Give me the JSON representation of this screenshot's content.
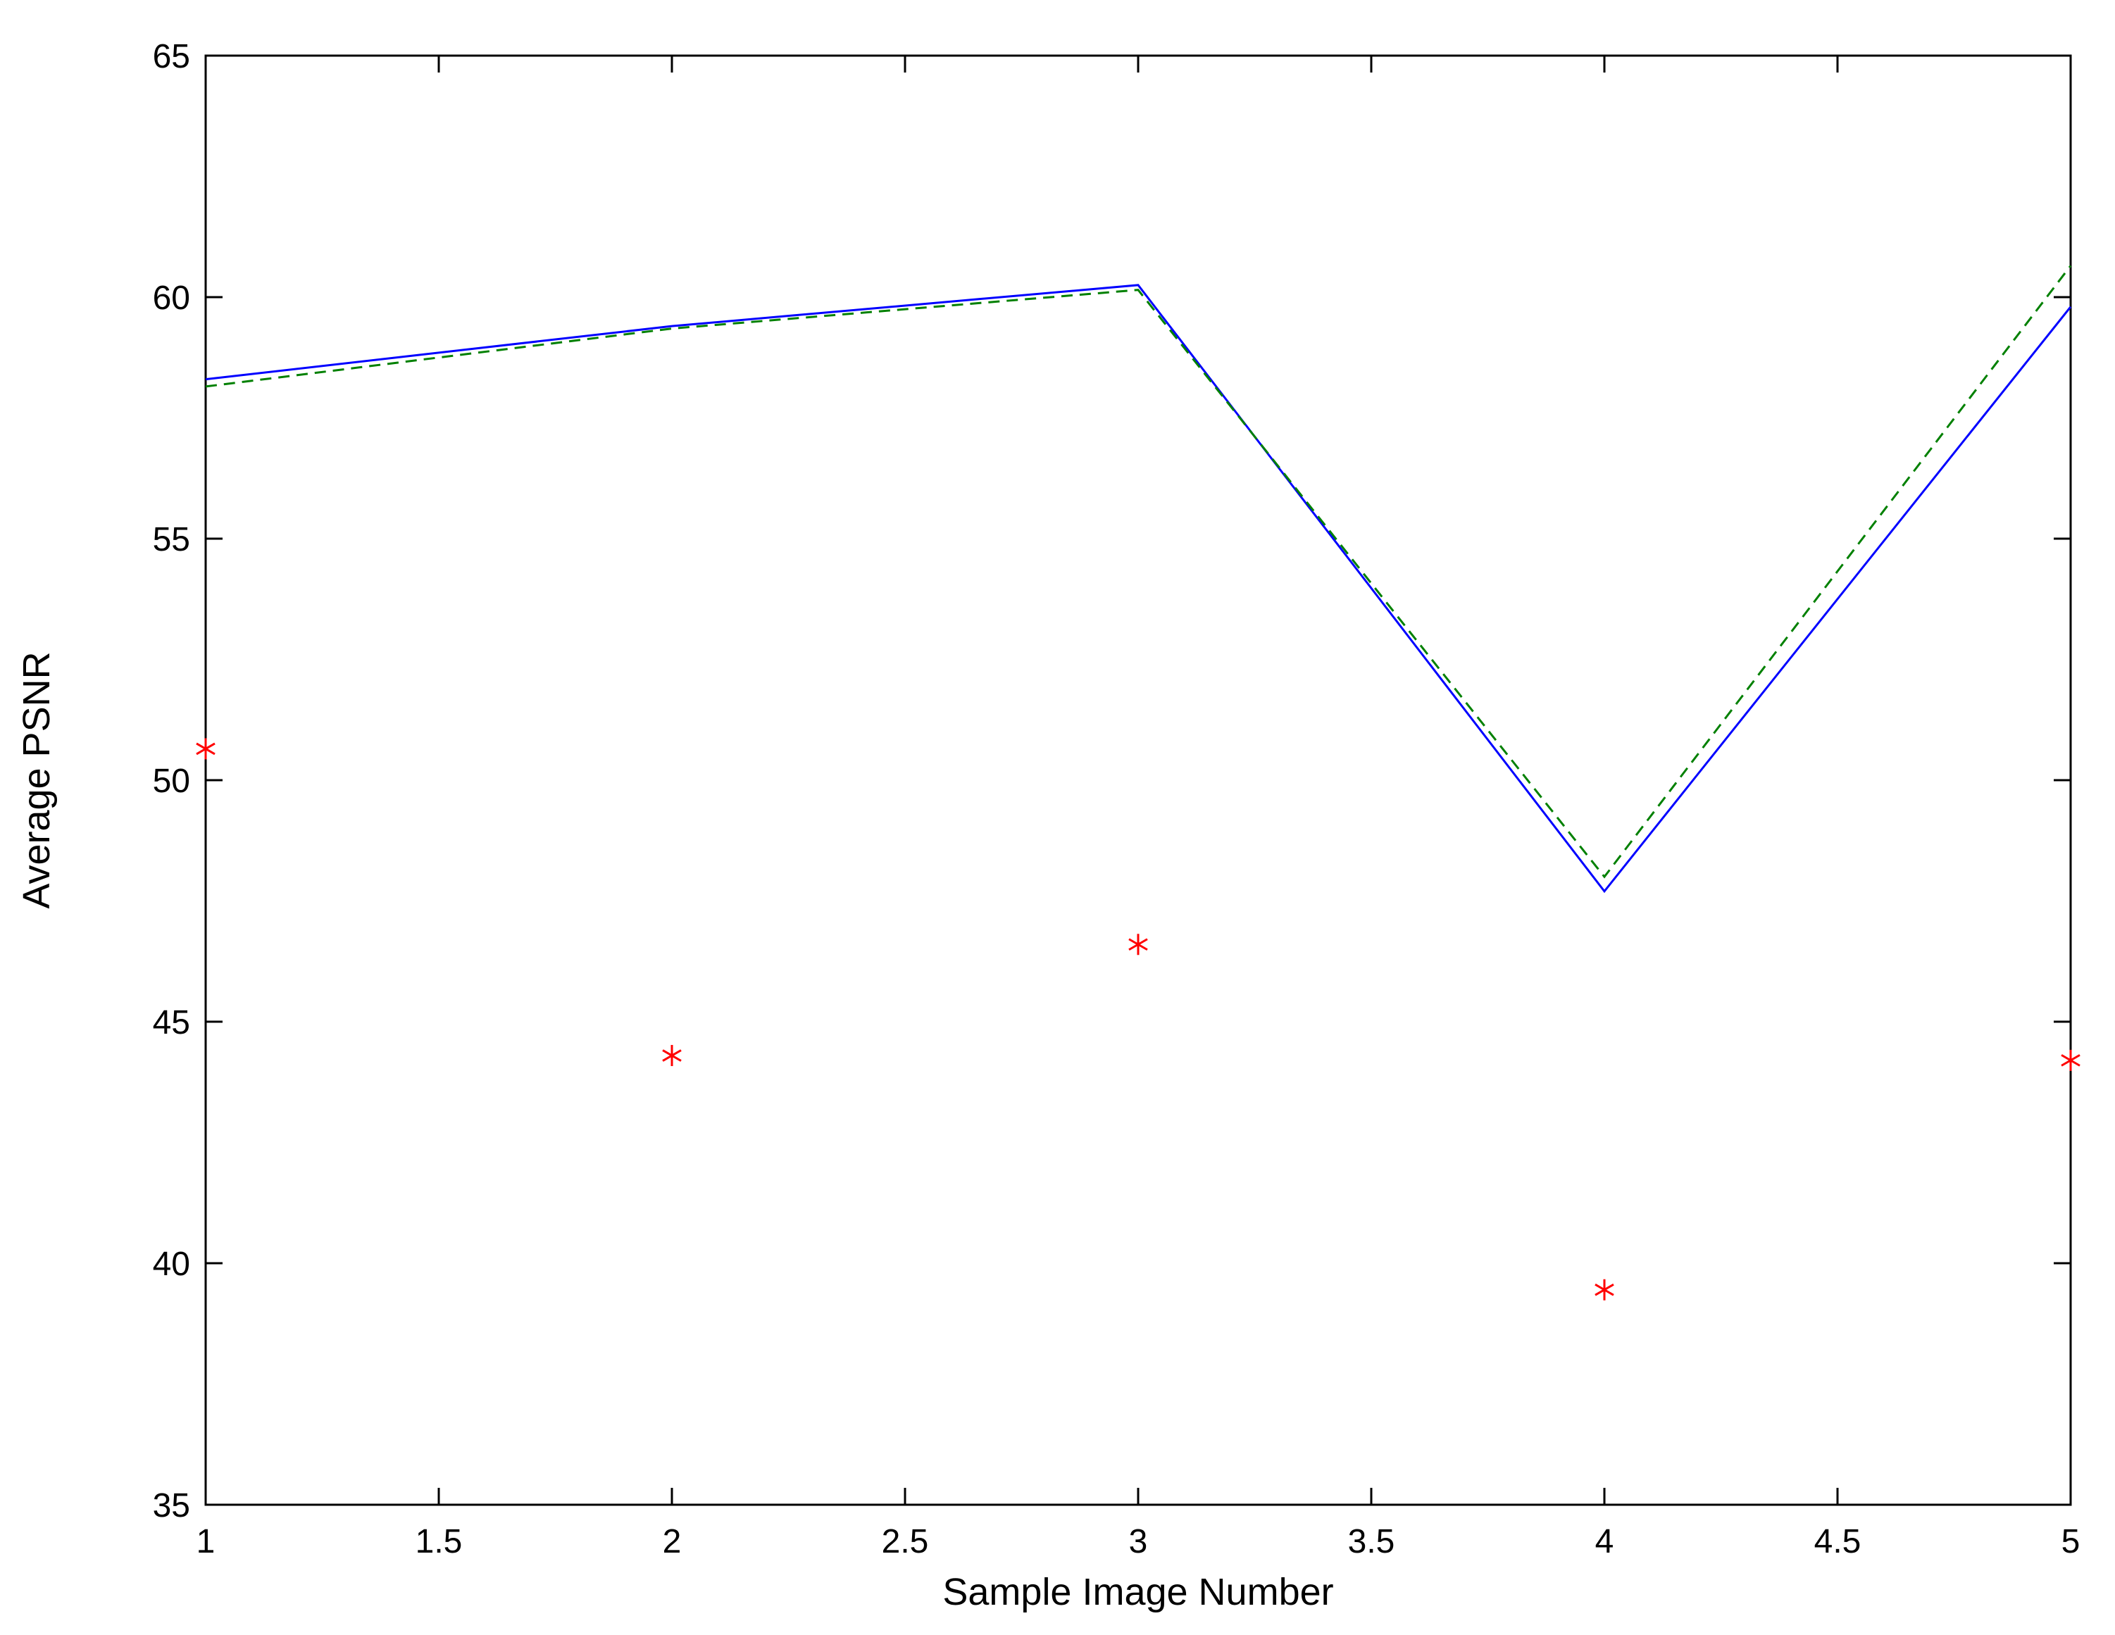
{
  "chart_data": {
    "type": "line",
    "title": "",
    "xlabel": "Sample Image Number",
    "ylabel": "Average PSNR",
    "xlim": [
      1,
      5
    ],
    "ylim": [
      35,
      65
    ],
    "xticks": [
      1,
      1.5,
      2,
      2.5,
      3,
      3.5,
      4,
      4.5,
      5
    ],
    "xtick_labels": [
      "1",
      "1.5",
      "2",
      "2.5",
      "3",
      "3.5",
      "4",
      "4.5",
      "5"
    ],
    "yticks": [
      35,
      40,
      45,
      50,
      55,
      60,
      65
    ],
    "ytick_labels": [
      "35",
      "40",
      "45",
      "50",
      "55",
      "60",
      "65"
    ],
    "grid": false,
    "legend": "none",
    "series": [
      {
        "style": "solid line",
        "color": "#0000ff",
        "x": [
          1,
          2,
          3,
          4,
          5
        ],
        "y": [
          58.3,
          59.4,
          60.25,
          47.7,
          59.8
        ]
      },
      {
        "style": "dashed line",
        "color": "#008000",
        "x": [
          1,
          2,
          3,
          4,
          5
        ],
        "y": [
          58.15,
          59.35,
          60.15,
          48.0,
          60.65
        ]
      },
      {
        "style": "asterisk markers",
        "color": "#ff0000",
        "x": [
          1,
          2,
          3,
          4,
          5
        ],
        "y": [
          50.65,
          44.3,
          46.6,
          39.45,
          44.2
        ]
      }
    ]
  }
}
